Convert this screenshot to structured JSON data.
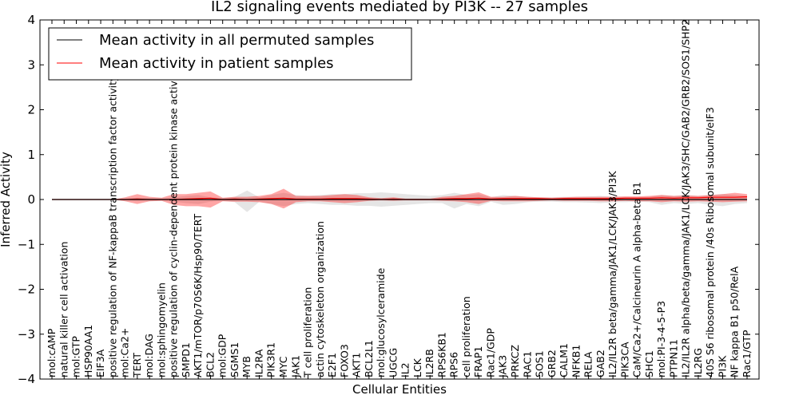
{
  "chart_data": {
    "type": "line",
    "title": "IL2 signaling events mediated by PI3K -- 27 samples",
    "xlabel": "Cellular Entities",
    "ylabel": "Inferred Activity",
    "ylim": [
      -4,
      4
    ],
    "yticks": [
      -4,
      -3,
      -2,
      -1,
      0,
      1,
      2,
      3,
      4
    ],
    "ytick_labels": [
      "−4",
      "−3",
      "−2",
      "−1",
      "0",
      "1",
      "2",
      "3",
      "4"
    ],
    "grid": false,
    "legend_position": "top-left",
    "categories": [
      "mol:cAMP",
      "natural killer cell activation",
      "mol:GTP",
      "HSP90AA1",
      "EIF3A",
      "positive regulation of NF-kappaB transcription factor activity",
      "mol:Ca2+",
      "TERT",
      "mol:DAG",
      "mol:sphingomyelin",
      "positive regulation of cyclin-dependent protein kinase activity",
      "SMPD1",
      "AKT1/mTOR/p70S6K/Hsp90/TERT",
      "BCL2",
      "mol:GDP",
      "SGMS1",
      "MYB",
      "IL2RA",
      "PIK3R1",
      "MYC",
      "JAK1",
      "T cell proliferation",
      "actin cytoskeleton organization",
      "E2F1",
      "FOXO3",
      "AKT1",
      "BCL2L1",
      "mol:glucosylceramide",
      "UGCG",
      "IL2",
      "LCK",
      "IL2RB",
      "RPS6KB1",
      "RPS6",
      "cell proliferation",
      "FRAP1",
      "Rac1/GDP",
      "JAK3",
      "PRKCZ",
      "RAC1",
      "SOS1",
      "GRB2",
      "CALM1",
      "NFKB1",
      "RELA",
      "GAB2",
      "IL2/IL2R beta/gamma/JAK1/LCK/JAK3/PI3K",
      "PIK3CA",
      "CaM/Ca2+/Calcineurin A alpha-beta B1",
      "SHC1",
      "mol:PI-3-4-5-P3",
      "PTPN11",
      "IL2/IL2R alpha/beta/gamma/JAK1/LCK/JAK3/SHC/GAB2/GRB2/SOS1/SHP2",
      "IL2RG",
      "40S S6 ribosomal protein /40s Ribosomal subunit/eIF3",
      "PI3K",
      "NF kappa B1 p50/RelA",
      "Rac1/GTP"
    ],
    "series": [
      {
        "name": "Mean activity in all permuted samples",
        "color": "#000000",
        "values": [
          0.0,
          0.0,
          0.0,
          0.0,
          0.0,
          0.0,
          0.0,
          0.0,
          0.0,
          0.0,
          0.0,
          0.0,
          0.0,
          0.0,
          0.0,
          0.0,
          0.0,
          0.0,
          0.0,
          0.0,
          0.0,
          0.0,
          0.0,
          0.0,
          0.0,
          0.0,
          0.0,
          0.0,
          0.0,
          0.0,
          0.0,
          0.0,
          0.0,
          0.0,
          0.0,
          0.0,
          0.0,
          0.0,
          0.0,
          0.0,
          0.0,
          0.0,
          0.0,
          0.0,
          0.0,
          0.0,
          0.0,
          0.0,
          0.0,
          0.0,
          0.0,
          0.0,
          0.0,
          0.0,
          0.0,
          0.0,
          0.0,
          0.0
        ],
        "band_low": [
          0.0,
          0.0,
          0.0,
          0.0,
          0.0,
          0.0,
          -0.02,
          -0.04,
          -0.03,
          -0.02,
          -0.05,
          -0.08,
          -0.1,
          -0.05,
          -0.03,
          -0.06,
          -0.28,
          -0.05,
          -0.1,
          -0.15,
          -0.1,
          -0.08,
          -0.1,
          -0.12,
          -0.12,
          -0.14,
          -0.14,
          -0.16,
          -0.14,
          -0.12,
          -0.1,
          -0.08,
          -0.08,
          -0.2,
          -0.1,
          -0.15,
          -0.05,
          -0.12,
          -0.1,
          -0.06,
          -0.05,
          -0.05,
          -0.06,
          -0.06,
          -0.07,
          -0.08,
          -0.06,
          -0.06,
          -0.05,
          -0.06,
          -0.12,
          -0.08,
          -0.1,
          -0.08,
          -0.12,
          -0.15,
          -0.1,
          -0.08
        ],
        "band_high": [
          0.0,
          0.0,
          0.0,
          0.0,
          0.0,
          0.0,
          0.02,
          0.04,
          0.03,
          0.02,
          0.05,
          0.08,
          0.1,
          0.05,
          0.03,
          0.06,
          0.2,
          0.05,
          0.1,
          0.15,
          0.1,
          0.08,
          0.1,
          0.12,
          0.12,
          0.14,
          0.14,
          0.16,
          0.14,
          0.12,
          0.1,
          0.08,
          0.1,
          0.15,
          0.1,
          0.12,
          0.05,
          0.1,
          0.08,
          0.06,
          0.05,
          0.05,
          0.06,
          0.06,
          0.07,
          0.08,
          0.06,
          0.06,
          0.05,
          0.06,
          0.1,
          0.08,
          0.1,
          0.08,
          0.1,
          0.12,
          0.1,
          0.08
        ]
      },
      {
        "name": "Mean activity in patient samples",
        "color": "#ff0000",
        "values": [
          0.0,
          0.0,
          0.0,
          0.0,
          0.0,
          0.0,
          0.0,
          0.01,
          0.0,
          0.0,
          0.0,
          0.01,
          0.02,
          0.03,
          0.0,
          0.01,
          0.0,
          0.01,
          0.02,
          0.03,
          0.01,
          0.01,
          0.01,
          0.02,
          0.02,
          0.02,
          0.01,
          0.0,
          0.01,
          0.0,
          0.0,
          0.0,
          0.01,
          0.02,
          0.02,
          0.03,
          0.01,
          0.02,
          0.02,
          0.02,
          0.02,
          0.01,
          0.02,
          0.02,
          0.02,
          0.02,
          0.02,
          0.03,
          0.03,
          0.03,
          0.04,
          0.03,
          0.04,
          0.04,
          0.05,
          0.05,
          0.05,
          0.06
        ],
        "band_low": [
          0.0,
          0.0,
          0.0,
          0.0,
          0.0,
          0.0,
          -0.04,
          -0.1,
          -0.04,
          -0.03,
          -0.12,
          -0.15,
          -0.15,
          -0.18,
          -0.04,
          -0.05,
          -0.05,
          -0.06,
          -0.1,
          -0.2,
          -0.06,
          -0.04,
          -0.04,
          -0.06,
          -0.08,
          -0.06,
          -0.03,
          -0.02,
          -0.03,
          -0.02,
          -0.02,
          -0.02,
          -0.03,
          -0.04,
          -0.06,
          -0.1,
          -0.03,
          -0.04,
          -0.04,
          -0.04,
          -0.03,
          -0.02,
          -0.03,
          -0.03,
          -0.03,
          -0.04,
          -0.04,
          -0.03,
          -0.04,
          -0.04,
          -0.06,
          -0.04,
          -0.05,
          -0.04,
          -0.05,
          -0.06,
          -0.05,
          -0.04
        ],
        "band_high": [
          0.0,
          0.0,
          0.0,
          0.0,
          0.0,
          0.0,
          0.05,
          0.12,
          0.06,
          0.04,
          0.12,
          0.12,
          0.15,
          0.18,
          0.04,
          0.06,
          0.06,
          0.08,
          0.12,
          0.24,
          0.08,
          0.08,
          0.08,
          0.1,
          0.12,
          0.1,
          0.05,
          0.03,
          0.05,
          0.02,
          0.02,
          0.02,
          0.06,
          0.08,
          0.12,
          0.16,
          0.06,
          0.06,
          0.08,
          0.06,
          0.05,
          0.04,
          0.05,
          0.06,
          0.06,
          0.06,
          0.06,
          0.07,
          0.07,
          0.08,
          0.1,
          0.08,
          0.09,
          0.08,
          0.1,
          0.12,
          0.15,
          0.12
        ]
      }
    ]
  }
}
